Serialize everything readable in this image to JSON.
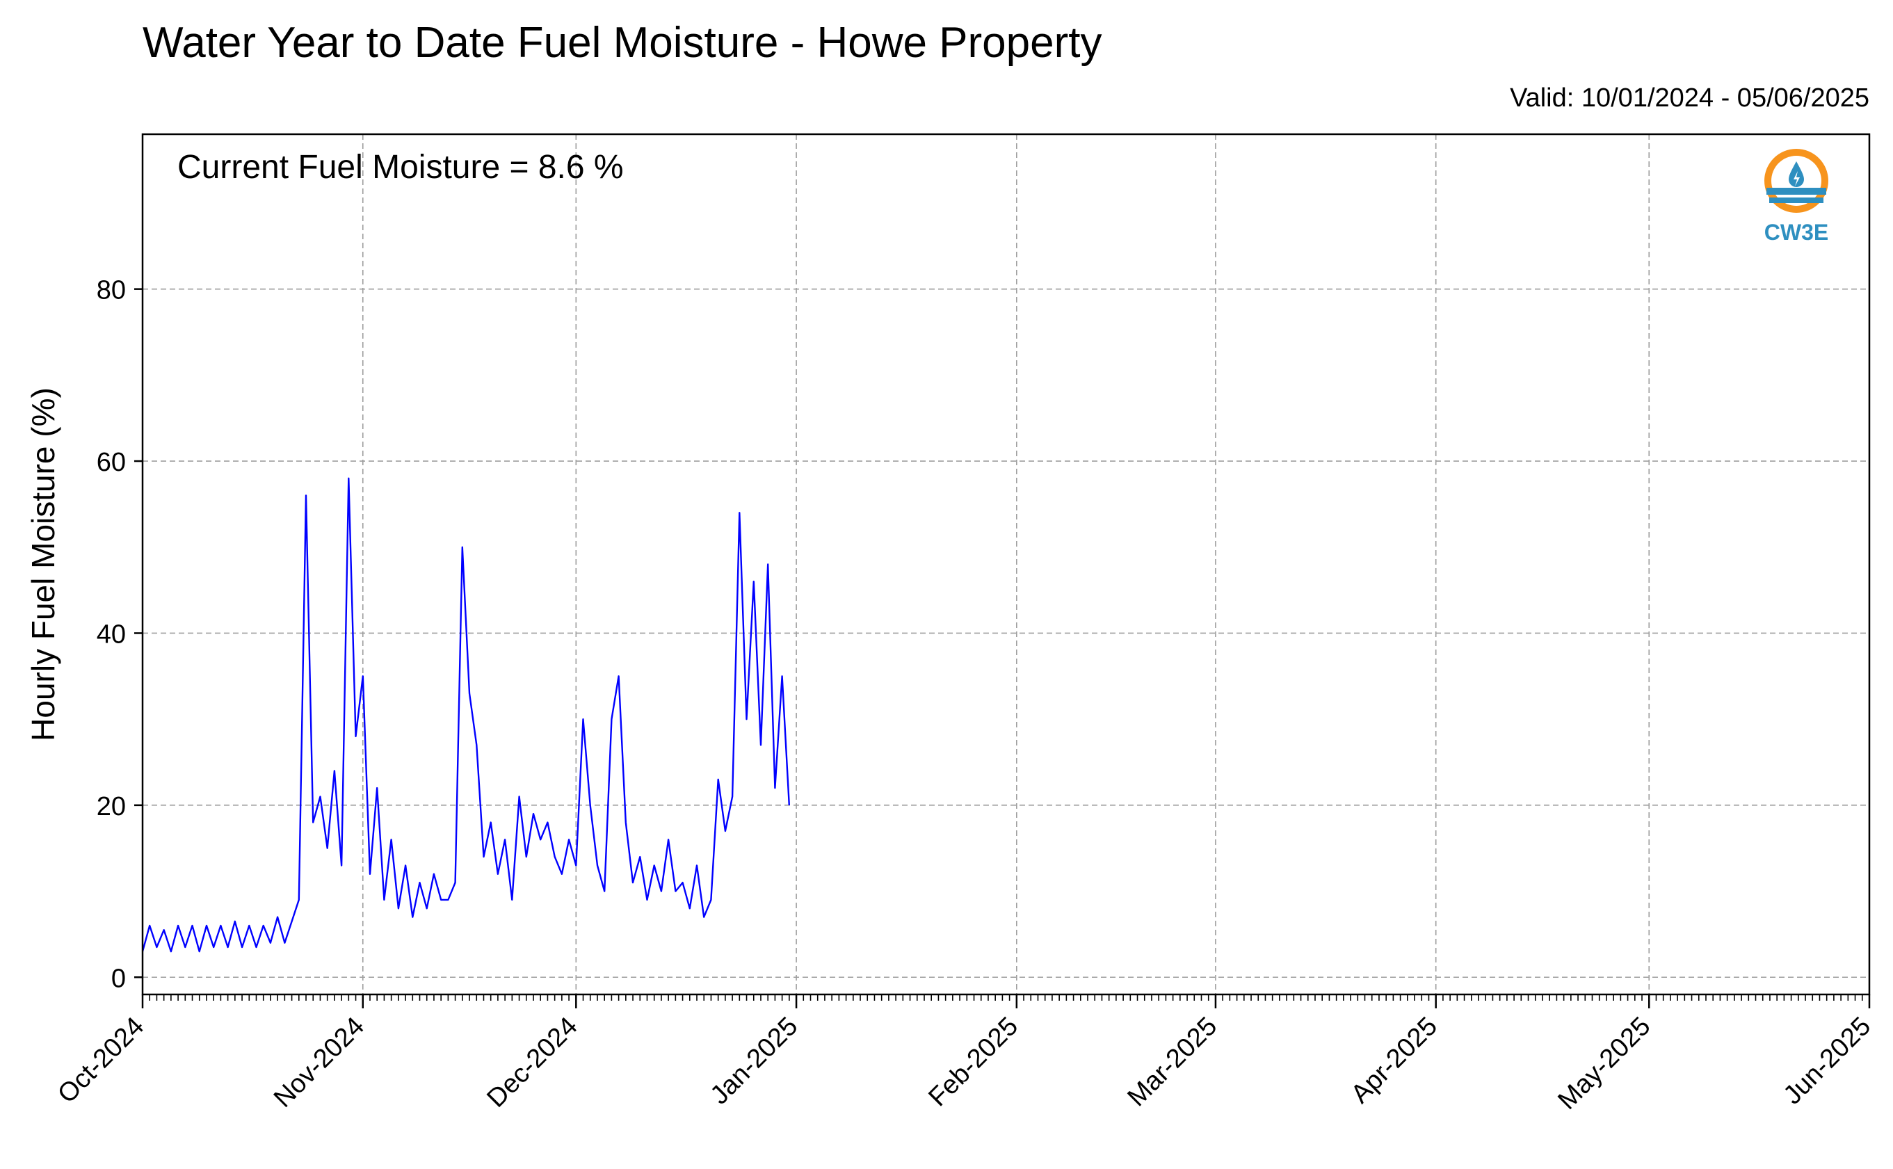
{
  "header": {
    "title": "Water Year to Date Fuel Moisture - Howe Property",
    "valid_label": "Valid: 10/01/2024 - 05/06/2025"
  },
  "annotation": "Current Fuel Moisture = 8.6 %",
  "logo": {
    "text": "CW3E",
    "ring_color": "#f7941d",
    "wave_color": "#2e8fc0"
  },
  "colors": {
    "line": "#0000ff",
    "grid": "#9e9e9e"
  },
  "chart_data": {
    "type": "line",
    "title": "Water Year to Date Fuel Moisture - Howe Property",
    "ylabel": "Hourly Fuel Moisture (%)",
    "xlabel": "",
    "xlim": [
      "2024-10-01",
      "2025-06-01"
    ],
    "ylim": [
      -2,
      98
    ],
    "xticks": [
      {
        "date": "2024-10-01",
        "label": "Oct-2024"
      },
      {
        "date": "2024-11-01",
        "label": "Nov-2024"
      },
      {
        "date": "2024-12-01",
        "label": "Dec-2024"
      },
      {
        "date": "2025-01-01",
        "label": "Jan-2025"
      },
      {
        "date": "2025-02-01",
        "label": "Feb-2025"
      },
      {
        "date": "2025-03-01",
        "label": "Mar-2025"
      },
      {
        "date": "2025-04-01",
        "label": "Apr-2025"
      },
      {
        "date": "2025-05-01",
        "label": "May-2025"
      },
      {
        "date": "2025-06-01",
        "label": "Jun-2025"
      }
    ],
    "yticks": [
      0,
      20,
      40,
      60,
      80
    ],
    "grid": true,
    "series": [
      {
        "color": "#0000ff",
        "points": [
          [
            "2024-10-01",
            3
          ],
          [
            "2024-10-02",
            6
          ],
          [
            "2024-10-03",
            3.5
          ],
          [
            "2024-10-04",
            5.5
          ],
          [
            "2024-10-05",
            3
          ],
          [
            "2024-10-06",
            6
          ],
          [
            "2024-10-07",
            3.5
          ],
          [
            "2024-10-08",
            6
          ],
          [
            "2024-10-09",
            3
          ],
          [
            "2024-10-10",
            6
          ],
          [
            "2024-10-11",
            3.5
          ],
          [
            "2024-10-12",
            6
          ],
          [
            "2024-10-13",
            3.5
          ],
          [
            "2024-10-14",
            6.5
          ],
          [
            "2024-10-15",
            3.5
          ],
          [
            "2024-10-16",
            6
          ],
          [
            "2024-10-17",
            3.5
          ],
          [
            "2024-10-18",
            6
          ],
          [
            "2024-10-19",
            4
          ],
          [
            "2024-10-20",
            7
          ],
          [
            "2024-10-21",
            4
          ],
          [
            "2024-10-22",
            6.5
          ],
          [
            "2024-10-23",
            9
          ],
          [
            "2024-10-24",
            56
          ],
          [
            "2024-10-25",
            18
          ],
          [
            "2024-10-26",
            21
          ],
          [
            "2024-10-27",
            15
          ],
          [
            "2024-10-28",
            24
          ],
          [
            "2024-10-29",
            13
          ],
          [
            "2024-10-30",
            58
          ],
          [
            "2024-10-31",
            28
          ],
          [
            "2024-11-01",
            35
          ],
          [
            "2024-11-02",
            12
          ],
          [
            "2024-11-03",
            22
          ],
          [
            "2024-11-04",
            9
          ],
          [
            "2024-11-05",
            16
          ],
          [
            "2024-11-06",
            8
          ],
          [
            "2024-11-07",
            13
          ],
          [
            "2024-11-08",
            7
          ],
          [
            "2024-11-09",
            11
          ],
          [
            "2024-11-10",
            8
          ],
          [
            "2024-11-11",
            12
          ],
          [
            "2024-11-12",
            9
          ],
          [
            "2024-11-13",
            9
          ],
          [
            "2024-11-14",
            11
          ],
          [
            "2024-11-15",
            50
          ],
          [
            "2024-11-16",
            33
          ],
          [
            "2024-11-17",
            27
          ],
          [
            "2024-11-18",
            14
          ],
          [
            "2024-11-19",
            18
          ],
          [
            "2024-11-20",
            12
          ],
          [
            "2024-11-21",
            16
          ],
          [
            "2024-11-22",
            9
          ],
          [
            "2024-11-23",
            21
          ],
          [
            "2024-11-24",
            14
          ],
          [
            "2024-11-25",
            19
          ],
          [
            "2024-11-26",
            16
          ],
          [
            "2024-11-27",
            18
          ],
          [
            "2024-11-28",
            14
          ],
          [
            "2024-11-29",
            12
          ],
          [
            "2024-11-30",
            16
          ],
          [
            "2024-12-01",
            13
          ],
          [
            "2024-12-02",
            30
          ],
          [
            "2024-12-03",
            20
          ],
          [
            "2024-12-04",
            13
          ],
          [
            "2024-12-05",
            10
          ],
          [
            "2024-12-06",
            30
          ],
          [
            "2024-12-07",
            35
          ],
          [
            "2024-12-08",
            18
          ],
          [
            "2024-12-09",
            11
          ],
          [
            "2024-12-10",
            14
          ],
          [
            "2024-12-11",
            9
          ],
          [
            "2024-12-12",
            13
          ],
          [
            "2024-12-13",
            10
          ],
          [
            "2024-12-14",
            16
          ],
          [
            "2024-12-15",
            10
          ],
          [
            "2024-12-16",
            11
          ],
          [
            "2024-12-17",
            8
          ],
          [
            "2024-12-18",
            13
          ],
          [
            "2024-12-19",
            7
          ],
          [
            "2024-12-20",
            9
          ],
          [
            "2024-12-21",
            23
          ],
          [
            "2024-12-22",
            17
          ],
          [
            "2024-12-23",
            21
          ],
          [
            "2024-12-24",
            54
          ],
          [
            "2024-12-25",
            30
          ],
          [
            "2024-12-26",
            46
          ],
          [
            "2024-12-27",
            27
          ],
          [
            "2024-12-28",
            48
          ],
          [
            "2024-12-29",
            22
          ],
          [
            "2024-12-30",
            35
          ],
          [
            "2024-12-31",
            20
          ],
          [
            "2024-12-01",
            13
          ]
        ]
      }
    ]
  }
}
